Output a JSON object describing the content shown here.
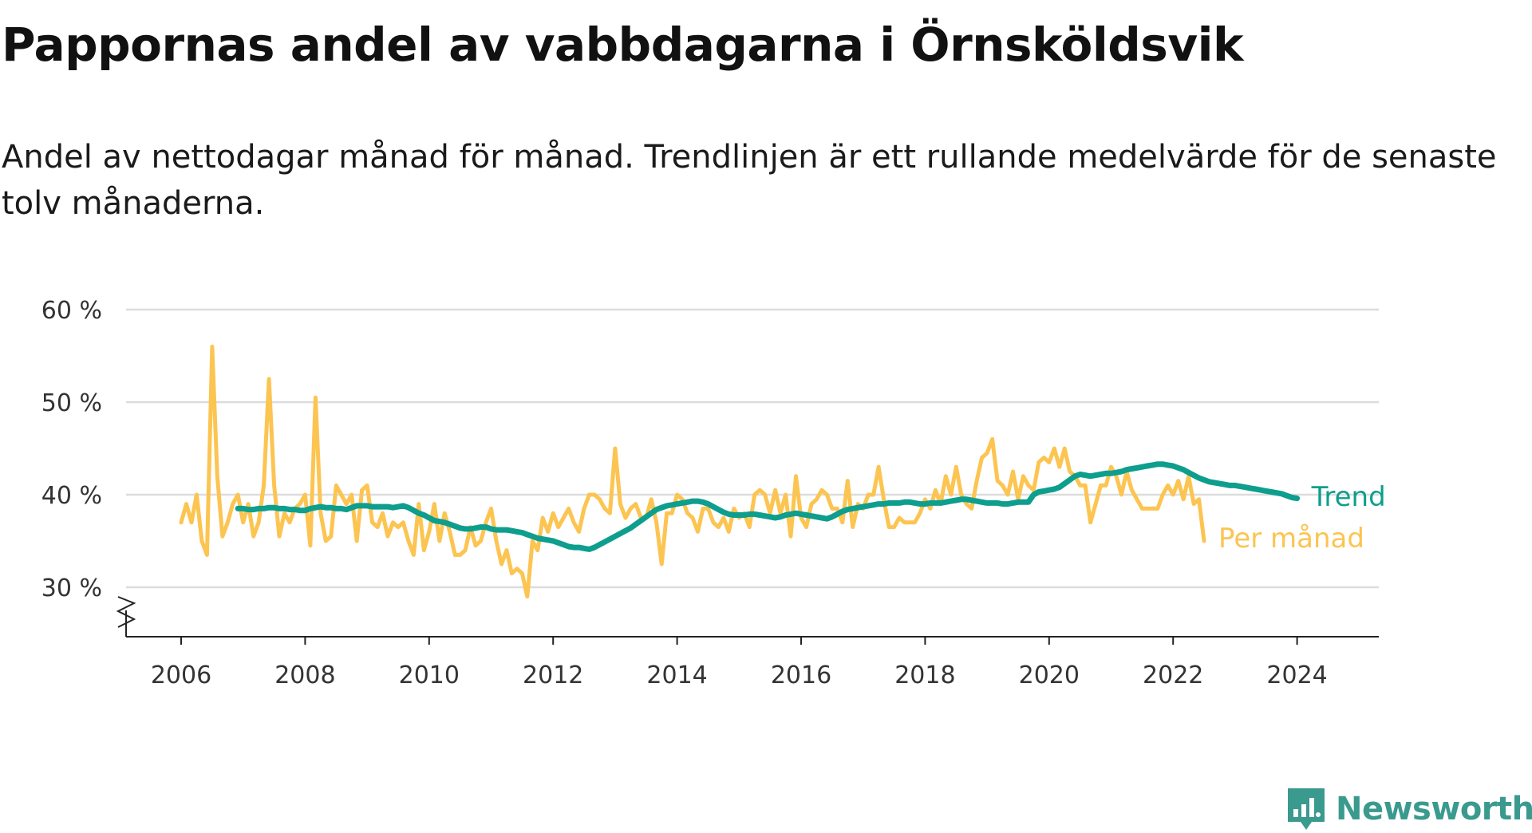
{
  "chart_data": {
    "type": "line",
    "title": "Pappornas andel av vabbdagarna i Örnsköldsvik",
    "subtitle": "Andel av nettodagar månad för månad. Trendlinjen är ett rullande medelvärde för de senaste tolv månaderna.",
    "xlabel": "",
    "ylabel": "",
    "x_start": "2006-01",
    "x_step": "month",
    "xlim": [
      2006,
      2024.5
    ],
    "x_ticks": [
      2006,
      2008,
      2010,
      2012,
      2014,
      2016,
      2018,
      2020,
      2022,
      2024
    ],
    "ylim": [
      25,
      60
    ],
    "y_ticks": [
      30,
      40,
      50,
      60
    ],
    "y_tick_suffix": " %",
    "y_axis_break": true,
    "grid": true,
    "legend": "direct labels at line ends (right)",
    "series": [
      {
        "name": "Per månad",
        "color": "#fcc451",
        "values": [
          37,
          39,
          37,
          40,
          35,
          33.5,
          56,
          42,
          35.5,
          37,
          39,
          40,
          37,
          39,
          35.5,
          37,
          41,
          52.5,
          41,
          35.5,
          38,
          37,
          38.5,
          39,
          40,
          34.5,
          50.5,
          38,
          35,
          35.5,
          41,
          40,
          39,
          40,
          35,
          40.5,
          41,
          37,
          36.5,
          38,
          35.5,
          37,
          36.5,
          37,
          35,
          33.5,
          39,
          34,
          36,
          39,
          35,
          38,
          36,
          33.5,
          33.5,
          34,
          36.5,
          34.5,
          35,
          37,
          38.5,
          35,
          32.5,
          34,
          31.5,
          32,
          31.5,
          29,
          35,
          34,
          37.5,
          36,
          38,
          36.5,
          37.5,
          38.5,
          37,
          36,
          38.5,
          40,
          40,
          39.5,
          38.5,
          38,
          45,
          39,
          37.5,
          38.5,
          39,
          37.5,
          37.5,
          39.5,
          37,
          32.5,
          38,
          38,
          40,
          39.5,
          38,
          37.5,
          36,
          38.5,
          38.5,
          37,
          36.5,
          37.5,
          36,
          38.5,
          37.5,
          38,
          36.5,
          40,
          40.5,
          40,
          38,
          40.5,
          38,
          40,
          35.5,
          42,
          37.5,
          36.5,
          39,
          39.5,
          40.5,
          40,
          38.5,
          38.5,
          37,
          41.5,
          36.5,
          39,
          38.5,
          40,
          40,
          43,
          39.5,
          36.5,
          36.5,
          37.5,
          37,
          37,
          37,
          38,
          39.5,
          38.5,
          40.5,
          39,
          42,
          40,
          43,
          40,
          39,
          38.5,
          41.5,
          44,
          44.5,
          46,
          41.5,
          41,
          40,
          42.5,
          39.5,
          42,
          41,
          40.5,
          43.5,
          44,
          43.5,
          45,
          43,
          45,
          42.5,
          42,
          41,
          41,
          37,
          39,
          41,
          41,
          43,
          42,
          40,
          42.5,
          40.5,
          39.5,
          38.5,
          38.5,
          38.5,
          38.5,
          40,
          41,
          40,
          41.5,
          39.5,
          42,
          39,
          39.5,
          35
        ]
      },
      {
        "name": "Trend",
        "color": "#0e9e8d",
        "start_index": 11,
        "values": [
          38.5,
          38.5,
          38.4,
          38.4,
          38.5,
          38.5,
          38.6,
          38.6,
          38.5,
          38.5,
          38.4,
          38.4,
          38.3,
          38.3,
          38.5,
          38.6,
          38.7,
          38.6,
          38.6,
          38.5,
          38.5,
          38.4,
          38.6,
          38.8,
          38.8,
          38.8,
          38.7,
          38.7,
          38.7,
          38.7,
          38.6,
          38.7,
          38.8,
          38.6,
          38.3,
          38.0,
          37.8,
          37.5,
          37.2,
          37.1,
          37.0,
          36.8,
          36.6,
          36.4,
          36.3,
          36.3,
          36.4,
          36.5,
          36.5,
          36.3,
          36.2,
          36.2,
          36.2,
          36.1,
          36.0,
          35.9,
          35.7,
          35.5,
          35.3,
          35.2,
          35.1,
          35.0,
          34.8,
          34.6,
          34.4,
          34.3,
          34.3,
          34.2,
          34.1,
          34.3,
          34.6,
          34.9,
          35.2,
          35.5,
          35.8,
          36.1,
          36.4,
          36.8,
          37.2,
          37.6,
          38.0,
          38.4,
          38.6,
          38.8,
          38.9,
          39.0,
          39.1,
          39.2,
          39.3,
          39.3,
          39.2,
          39.0,
          38.7,
          38.4,
          38.1,
          37.9,
          37.8,
          37.8,
          37.8,
          37.9,
          37.9,
          37.8,
          37.7,
          37.6,
          37.5,
          37.6,
          37.8,
          37.9,
          38.0,
          37.9,
          37.8,
          37.7,
          37.6,
          37.5,
          37.4,
          37.6,
          37.9,
          38.2,
          38.4,
          38.5,
          38.6,
          38.7,
          38.8,
          38.9,
          39.0,
          39.0,
          39.1,
          39.1,
          39.1,
          39.2,
          39.2,
          39.1,
          39.0,
          39.0,
          39.1,
          39.1,
          39.1,
          39.2,
          39.3,
          39.4,
          39.5,
          39.5,
          39.4,
          39.3,
          39.2,
          39.1,
          39.1,
          39.1,
          39.0,
          39.0,
          39.1,
          39.2,
          39.2,
          39.2,
          40.0,
          40.3,
          40.4,
          40.5,
          40.6,
          40.8,
          41.2,
          41.6,
          42.0,
          42.2,
          42.1,
          42.0,
          42.1,
          42.2,
          42.3,
          42.3,
          42.4,
          42.5,
          42.7,
          42.8,
          42.9,
          43.0,
          43.1,
          43.2,
          43.3,
          43.3,
          43.2,
          43.1,
          42.9,
          42.7,
          42.4,
          42.1,
          41.8,
          41.6,
          41.4,
          41.3,
          41.2,
          41.1,
          41.0,
          41.0,
          40.9,
          40.8,
          40.7,
          40.6,
          40.5,
          40.4,
          40.3,
          40.2,
          40.1,
          39.9,
          39.7,
          39.6
        ]
      }
    ]
  },
  "branding": {
    "logo_text": "Newsworthy",
    "logo_color": "#3a9a8e",
    "logo_icon": "bar-chart-speech-bubble-icon"
  }
}
